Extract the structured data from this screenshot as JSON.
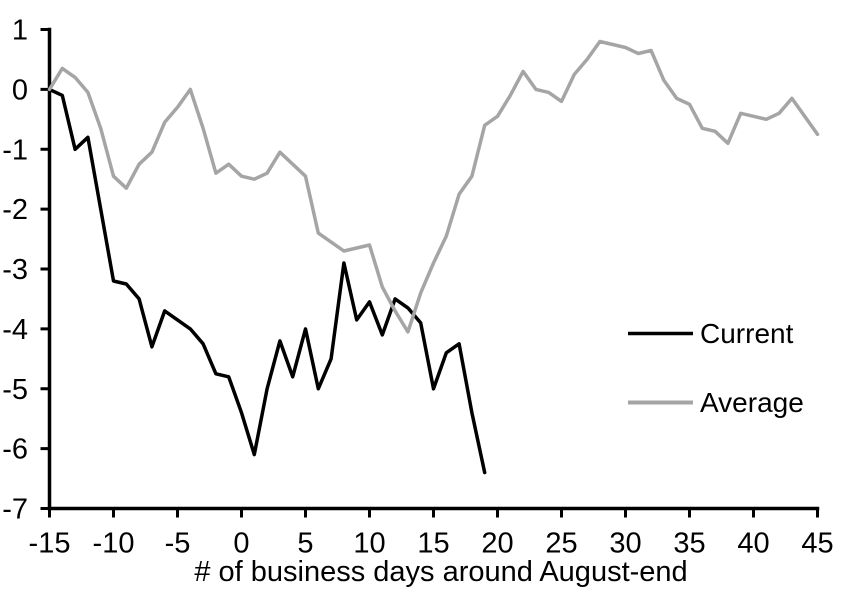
{
  "chart_data": {
    "type": "line",
    "title": "",
    "xlabel": "# of business days around August-end",
    "ylabel": "",
    "xlim": [
      -15,
      45
    ],
    "ylim": [
      -7,
      1
    ],
    "grid": false,
    "background": "#ffffff",
    "axis_color": "#000000",
    "legend_position": "middle-right",
    "x_tick_labels": [
      "-15",
      "-10",
      "-5",
      "0",
      "5",
      "10",
      "15",
      "20",
      "25",
      "30",
      "35",
      "40",
      "45"
    ],
    "y_tick_labels": [
      "1",
      "0",
      "-1",
      "-2",
      "-3",
      "-4",
      "-5",
      "-6",
      "-7"
    ],
    "x_start": -15,
    "x_step": 1,
    "series": [
      {
        "name": "Current",
        "color": "#000000",
        "x_start": -15,
        "values": [
          0,
          -0.1,
          -1.0,
          -0.8,
          -2.0,
          -3.2,
          -3.25,
          -3.5,
          -4.3,
          -3.7,
          -3.85,
          -4.0,
          -4.25,
          -4.75,
          -4.8,
          -5.4,
          -6.1,
          -5.0,
          -4.2,
          -4.8,
          -4.0,
          -5.0,
          -4.5,
          -2.9,
          -3.85,
          -3.55,
          -4.1,
          -3.5,
          -3.65,
          -3.9,
          -5.0,
          -4.4,
          -4.25,
          -5.4,
          -6.4
        ]
      },
      {
        "name": "Average",
        "color": "#a5a5a5",
        "x_start": -15,
        "values": [
          0,
          0.35,
          0.2,
          -0.05,
          -0.65,
          -1.45,
          -1.65,
          -1.25,
          -1.05,
          -0.55,
          -0.3,
          0,
          -0.65,
          -1.4,
          -1.25,
          -1.45,
          -1.5,
          -1.4,
          -1.05,
          -1.25,
          -1.45,
          -2.4,
          -2.55,
          -2.7,
          -2.65,
          -2.6,
          -3.3,
          -3.7,
          -4.05,
          -3.4,
          -2.9,
          -2.45,
          -1.75,
          -1.45,
          -0.6,
          -0.45,
          -0.1,
          0.3,
          0,
          -0.05,
          -0.2,
          0.25,
          0.5,
          0.8,
          0.75,
          0.7,
          0.6,
          0.65,
          0.15,
          -0.15,
          -0.25,
          -0.65,
          -0.7,
          -0.9,
          -0.4,
          -0.45,
          -0.5,
          -0.4,
          -0.15,
          -0.45,
          -0.75
        ]
      }
    ]
  }
}
